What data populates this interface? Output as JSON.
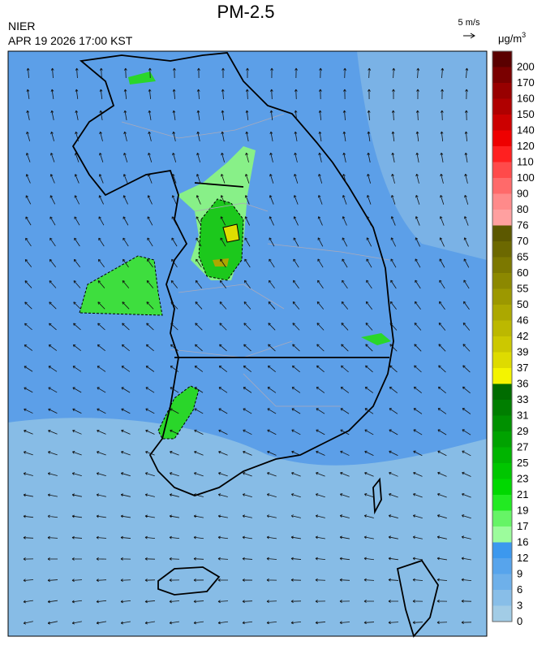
{
  "header": {
    "title": "PM-2.5",
    "agency": "NIER",
    "datetime": "APR 19 2026 17:00 KST",
    "wind_scale": "5 m/s",
    "unit": "μg/m",
    "unit_power": "3"
  },
  "colorbar": {
    "levels": [
      200,
      170,
      160,
      150,
      140,
      120,
      110,
      100,
      90,
      80,
      76,
      70,
      65,
      60,
      55,
      50,
      46,
      42,
      39,
      37,
      36,
      33,
      31,
      29,
      27,
      25,
      23,
      21,
      19,
      17,
      16,
      12,
      9,
      6,
      3,
      0
    ],
    "colors": [
      "#5a0000",
      "#7a0000",
      "#980000",
      "#b00000",
      "#cc0000",
      "#ee0000",
      "#ff2020",
      "#ff4a4a",
      "#ff6a6a",
      "#ff8a8a",
      "#ffa0a0",
      "#5c5800",
      "#6c6800",
      "#7c7800",
      "#8c8800",
      "#9c9800",
      "#aca800",
      "#bcb800",
      "#ccc800",
      "#dedb00",
      "#f4f400",
      "#006c00",
      "#007e00",
      "#009000",
      "#00a200",
      "#00b400",
      "#00c600",
      "#00d800",
      "#22ea22",
      "#66f466",
      "#9cfc9c",
      "#3c98ee",
      "#57a4ec",
      "#6eb0ea",
      "#88bee8",
      "#a2cce6"
    ]
  }
}
